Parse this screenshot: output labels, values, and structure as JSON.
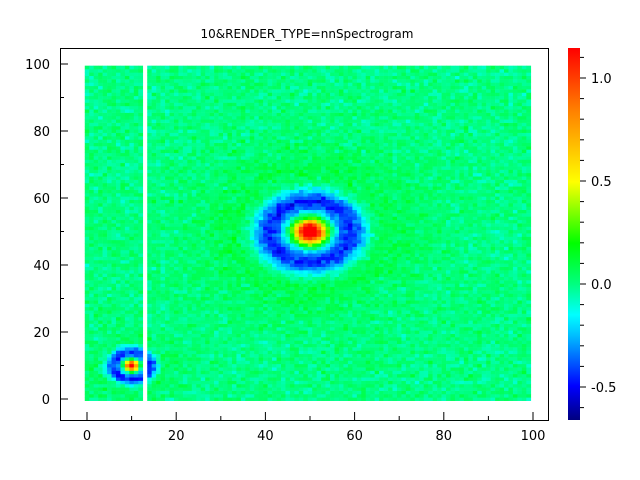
{
  "chart_data": {
    "type": "heatmap",
    "title": "10&RENDER_TYPE=nnSpectrogram",
    "xlabel": "",
    "ylabel": "",
    "xlim": [
      -6,
      103
    ],
    "ylim": [
      -6,
      105
    ],
    "x_ticks": [
      0,
      20,
      40,
      60,
      80,
      100
    ],
    "y_ticks": [
      0,
      20,
      40,
      60,
      80,
      100
    ],
    "grid": false,
    "grid_size": [
      100,
      100
    ],
    "missing_columns": [
      13
    ],
    "background_value": 0.0,
    "features": [
      {
        "center": [
          50,
          50
        ],
        "peak_value": 1.1,
        "ring_radius": 11,
        "ring_value": -0.45,
        "halo_radius": 24,
        "halo_value": 0.2
      },
      {
        "center": [
          10,
          10
        ],
        "peak_value": 0.9,
        "ring_radius": 5,
        "ring_value": -0.45,
        "halo_radius": 10,
        "halo_value": 0.15
      }
    ],
    "colorbar": {
      "range": [
        -0.665,
        1.155
      ],
      "ticks": [
        -0.5,
        0.0,
        0.5,
        1.0
      ],
      "tick_labels": [
        "-0.5",
        "0.0",
        "0.5",
        "1.0"
      ],
      "colormap": [
        "#00007f",
        "#0000ff",
        "#00bfff",
        "#00ffff",
        "#00ff80",
        "#00ff00",
        "#ffff00",
        "#ff8000",
        "#ff0000"
      ]
    }
  }
}
